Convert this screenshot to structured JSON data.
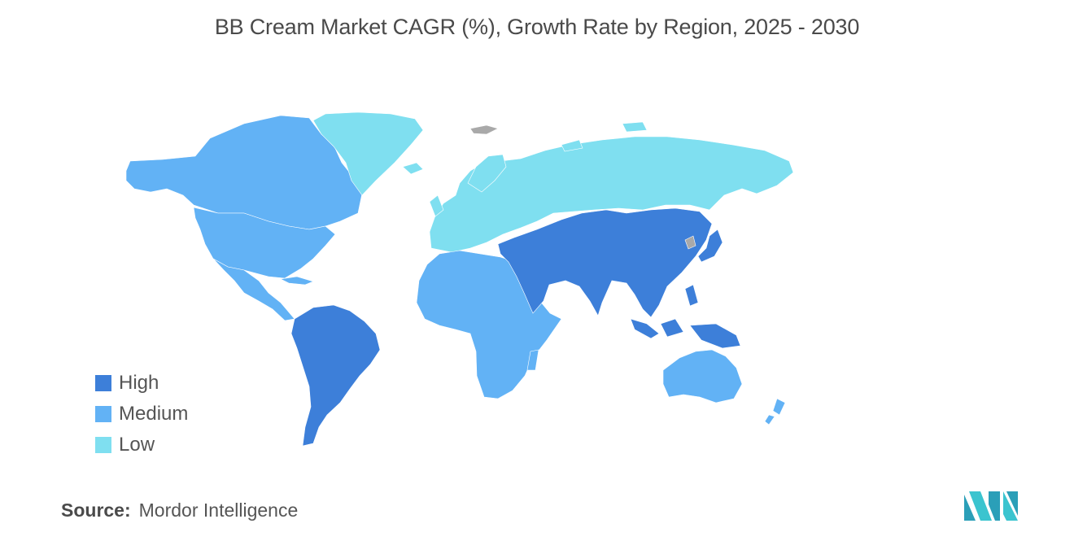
{
  "title": "BB Cream Market CAGR (%), Growth Rate by Region, 2025 - 2030",
  "legend": [
    {
      "label": "High",
      "color": "#3d7fd9"
    },
    {
      "label": "Medium",
      "color": "#62b2f5"
    },
    {
      "label": "Low",
      "color": "#7fdff0"
    }
  ],
  "colors": {
    "no_data": "#a9a9a9"
  },
  "source": {
    "label": "Source:",
    "value": "Mordor Intelligence"
  },
  "logo": {
    "icon": "mordor-intelligence-logo-icon"
  }
}
